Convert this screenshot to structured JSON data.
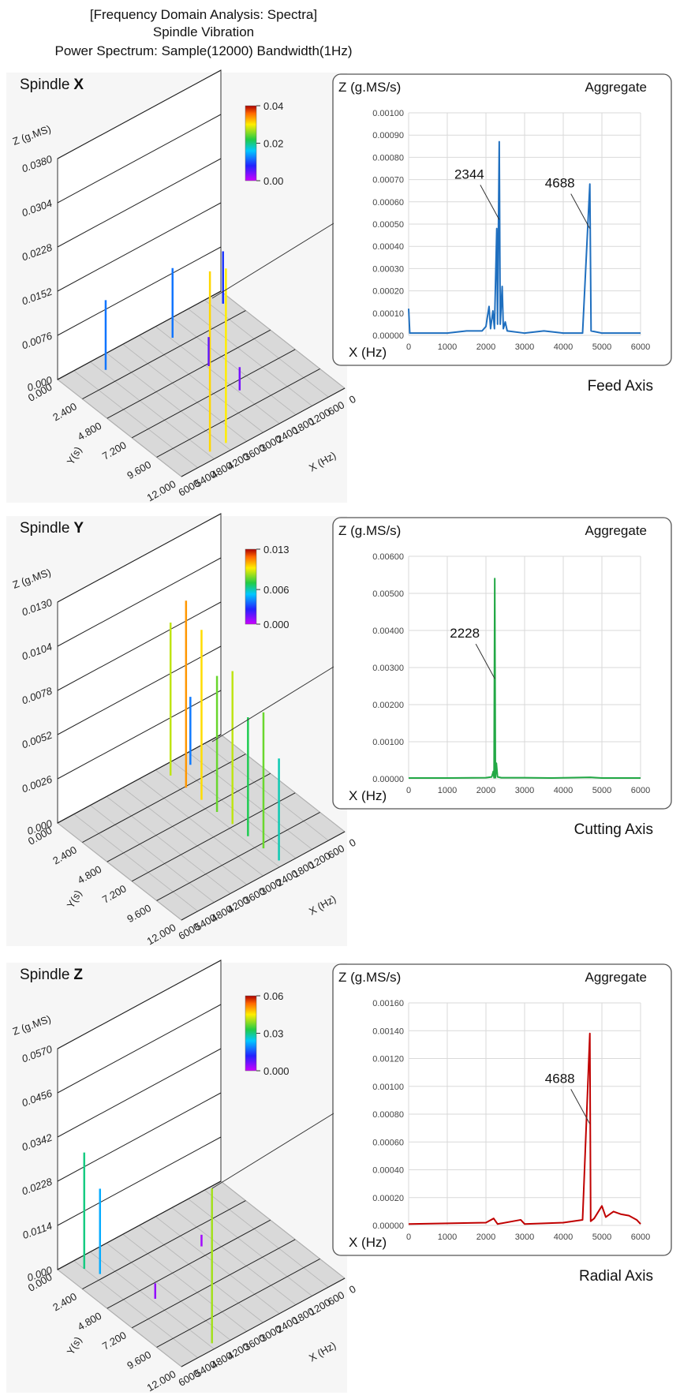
{
  "header": {
    "title": "[Frequency Domain Analysis: Spectra]",
    "subtitle": "Spindle Vibration",
    "description": "Power Spectrum: Sample(12000) Bandwidth(1Hz)"
  },
  "chart_data": [
    {
      "type": "surface",
      "title": "Spindle",
      "title_emphasis": "X",
      "zlabel": "Z (g.MS)",
      "ylabel": "Y(s)",
      "xlabel": "X (Hz)",
      "xlim": [
        0,
        6000
      ],
      "ylim": [
        0,
        12
      ],
      "zlim": [
        0,
        0.038
      ],
      "xticks": [
        0,
        600,
        1200,
        1800,
        2400,
        3000,
        3600,
        4200,
        4800,
        5400,
        6000
      ],
      "yticks": [
        {
          "value": 0,
          "label": "0.000"
        },
        {
          "value": 2.4,
          "label": "2.400"
        },
        {
          "value": 4.8,
          "label": "4.800"
        },
        {
          "value": 7.2,
          "label": "7.200"
        },
        {
          "value": 9.6,
          "label": "9.600"
        },
        {
          "value": 12,
          "label": "12.000"
        }
      ],
      "zticks": [
        {
          "value": 0,
          "label": "0.000"
        },
        0.0076,
        0.0152,
        0.0228,
        0.0304,
        {
          "value": 0.038,
          "label": "0.0380"
        }
      ],
      "colorbar": {
        "lim": [
          0,
          0.04
        ],
        "ticks": [
          {
            "value": 0,
            "label": "0.00"
          },
          0.02,
          0.04
        ]
      },
      "spikes": {
        "x": [
          4688,
          4100,
          2344,
          2344,
          4688,
          300,
          2344
        ],
        "y": [
          11.3,
          11.3,
          1.5,
          5,
          1.2,
          1,
          8
        ],
        "values": [
          0.031,
          0.03,
          0.012,
          0.005,
          0.012,
          0.009,
          0.004
        ]
      }
    },
    {
      "type": "line",
      "ylabel": "Z (g.MS/s)",
      "legend": "Aggregate",
      "xlabel": "X (Hz)",
      "caption": "Feed Axis",
      "grid": true,
      "xlim": [
        0,
        6000
      ],
      "ylim": [
        0,
        0.001
      ],
      "xticks": [
        0,
        1000,
        2000,
        3000,
        4000,
        5000,
        6000
      ],
      "yticks": [
        {
          "value": 0,
          "label": "0.00000"
        },
        {
          "value": 0.0001,
          "label": "0.00010"
        },
        {
          "value": 0.0002,
          "label": "0.00020"
        },
        {
          "value": 0.0003,
          "label": "0.00030"
        },
        {
          "value": 0.0004,
          "label": "0.00040"
        },
        {
          "value": 0.0005,
          "label": "0.00050"
        },
        {
          "value": 0.0006,
          "label": "0.00060"
        },
        {
          "value": 0.0007,
          "label": "0.00070"
        },
        {
          "value": 0.0008,
          "label": "0.00080"
        },
        {
          "value": 0.0009,
          "label": "0.00090"
        },
        {
          "value": 0.001,
          "label": "0.00100"
        }
      ],
      "series": [
        {
          "color": "#1f6fbf",
          "x": [
            0,
            30,
            500,
            1000,
            1500,
            1900,
            2000,
            2080,
            2120,
            2180,
            2220,
            2280,
            2300,
            2344,
            2370,
            2420,
            2450,
            2500,
            2550,
            3000,
            3500,
            4000,
            4500,
            4688,
            4720,
            5000,
            5500,
            6000
          ],
          "values": [
            0.00012,
            1e-05,
            1e-05,
            1e-05,
            2e-05,
            2e-05,
            4e-05,
            0.00013,
            3e-05,
            0.00011,
            3e-05,
            0.00048,
            5e-05,
            0.00087,
            5e-05,
            0.00022,
            3e-05,
            6e-05,
            2e-05,
            1e-05,
            2e-05,
            1e-05,
            1e-05,
            0.00068,
            2e-05,
            1e-05,
            1e-05,
            1e-05
          ]
        }
      ],
      "annotations": [
        {
          "text": "2344",
          "x": 2344,
          "y": 0.00052
        },
        {
          "text": "4688",
          "x": 4688,
          "y": 0.00048
        }
      ]
    },
    {
      "type": "surface",
      "title": "Spindle",
      "title_emphasis": "Y",
      "zlabel": "Z (g.MS)",
      "ylabel": "Y(s)",
      "xlabel": "X (Hz)",
      "xlim": [
        0,
        6000
      ],
      "ylim": [
        0,
        12
      ],
      "zlim": [
        0,
        0.013
      ],
      "xticks": [
        0,
        600,
        1200,
        1800,
        2400,
        3000,
        3600,
        4200,
        4800,
        5400,
        6000
      ],
      "yticks": [
        {
          "value": 0,
          "label": "0.000"
        },
        {
          "value": 2.4,
          "label": "2.400"
        },
        {
          "value": 4.8,
          "label": "4.800"
        },
        {
          "value": 7.2,
          "label": "7.200"
        },
        {
          "value": 9.6,
          "label": "9.600"
        },
        {
          "value": 12,
          "label": "12.000"
        }
      ],
      "zticks": [
        {
          "value": 0,
          "label": "0.000"
        },
        0.0026,
        0.0052,
        0.0078,
        0.0104,
        {
          "value": 0.013,
          "label": "0.0130"
        }
      ],
      "colorbar": {
        "lim": [
          0,
          0.013
        ],
        "ticks": [
          {
            "value": 0,
            "label": "0.000"
          },
          0.006,
          0.013
        ]
      },
      "spikes": {
        "x": [
          2228,
          2228,
          2228,
          2228,
          2228,
          2228,
          2228,
          2228,
          1500
        ],
        "y": [
          1,
          2.5,
          4,
          5.5,
          7,
          8.5,
          10,
          11.5,
          1
        ],
        "values": [
          0.009,
          0.011,
          0.01,
          0.008,
          0.009,
          0.007,
          0.008,
          0.006,
          0.004
        ]
      }
    },
    {
      "type": "line",
      "ylabel": "Z (g.MS/s)",
      "legend": "Aggregate",
      "xlabel": "X (Hz)",
      "caption": "Cutting Axis",
      "grid": true,
      "xlim": [
        0,
        6000
      ],
      "ylim": [
        0,
        0.006
      ],
      "xticks": [
        0,
        1000,
        2000,
        3000,
        4000,
        5000,
        6000
      ],
      "yticks": [
        {
          "value": 0,
          "label": "0.00000"
        },
        {
          "value": 0.001,
          "label": "0.00100"
        },
        {
          "value": 0.002,
          "label": "0.00200"
        },
        {
          "value": 0.003,
          "label": "0.00300"
        },
        {
          "value": 0.004,
          "label": "0.00400"
        },
        {
          "value": 0.005,
          "label": "0.00500"
        },
        {
          "value": 0.006,
          "label": "0.00600"
        }
      ],
      "series": [
        {
          "color": "#22a845",
          "x": [
            0,
            1000,
            2000,
            2150,
            2190,
            2210,
            2228,
            2245,
            2270,
            2300,
            2400,
            3000,
            3700,
            4700,
            5000,
            6000
          ],
          "values": [
            2e-05,
            2e-05,
            3e-05,
            5e-05,
            0.0002,
            3e-05,
            0.0054,
            3e-05,
            0.00042,
            5e-05,
            3e-05,
            3e-05,
            2e-05,
            4e-05,
            2e-05,
            2e-05
          ]
        }
      ],
      "annotations": [
        {
          "text": "2228",
          "x": 2228,
          "y": 0.0027
        }
      ]
    },
    {
      "type": "surface",
      "title": "Spindle",
      "title_emphasis": "Z",
      "zlabel": "Z (g.MS)",
      "ylabel": "Y(s)",
      "xlabel": "X (Hz)",
      "xlim": [
        0,
        6000
      ],
      "ylim": [
        0,
        12
      ],
      "zlim": [
        0,
        0.057
      ],
      "xticks": [
        0,
        600,
        1200,
        1800,
        2400,
        3000,
        3600,
        4200,
        4800,
        5400,
        6000
      ],
      "yticks": [
        {
          "value": 0,
          "label": "0.000"
        },
        {
          "value": 2.4,
          "label": "2.400"
        },
        {
          "value": 4.8,
          "label": "4.800"
        },
        {
          "value": 7.2,
          "label": "7.200"
        },
        {
          "value": 9.6,
          "label": "9.600"
        },
        {
          "value": 12,
          "label": "12.000"
        }
      ],
      "zticks": [
        {
          "value": 0,
          "label": "0.000"
        },
        0.0114,
        0.0228,
        0.0342,
        0.0456,
        {
          "value": 0.057,
          "label": "0.0570"
        }
      ],
      "colorbar": {
        "lim": [
          0,
          0.06
        ],
        "ticks": [
          {
            "value": 0,
            "label": "0.000"
          },
          0.03,
          0.06
        ]
      },
      "spikes": {
        "x": [
          4688,
          4688,
          5400,
          5200,
          2228
        ],
        "y": [
          11.5,
          6,
          1,
          2,
          4
        ],
        "values": [
          0.04,
          0.004,
          0.03,
          0.022,
          0.003
        ]
      }
    },
    {
      "type": "line",
      "ylabel": "Z (g.MS/s)",
      "legend": "Aggregate",
      "xlabel": "X (Hz)",
      "caption": "Radial Axis",
      "grid": true,
      "xlim": [
        0,
        6000
      ],
      "ylim": [
        0,
        0.0016
      ],
      "xticks": [
        0,
        1000,
        2000,
        3000,
        4000,
        5000,
        6000
      ],
      "yticks": [
        {
          "value": 0,
          "label": "0.00000"
        },
        {
          "value": 0.0002,
          "label": "0.00020"
        },
        {
          "value": 0.0004,
          "label": "0.00040"
        },
        {
          "value": 0.0006,
          "label": "0.00060"
        },
        {
          "value": 0.0008,
          "label": "0.00080"
        },
        {
          "value": 0.001,
          "label": "0.00100"
        },
        {
          "value": 0.0012,
          "label": "0.00120"
        },
        {
          "value": 0.0014,
          "label": "0.00140"
        },
        {
          "value": 0.0016,
          "label": "0.00160"
        }
      ],
      "series": [
        {
          "color": "#c00000",
          "x": [
            0,
            2000,
            2200,
            2300,
            2900,
            3000,
            4000,
            4500,
            4688,
            4710,
            4800,
            5000,
            5100,
            5300,
            5500,
            5700,
            5900,
            6000
          ],
          "values": [
            1e-05,
            2e-05,
            5e-05,
            1e-05,
            4e-05,
            1e-05,
            2e-05,
            4e-05,
            0.00138,
            3e-05,
            5e-05,
            0.00014,
            6e-05,
            0.0001,
            8e-05,
            7e-05,
            4e-05,
            1e-05
          ]
        }
      ],
      "annotations": [
        {
          "text": "4688",
          "x": 4688,
          "y": 0.00073
        }
      ]
    }
  ]
}
